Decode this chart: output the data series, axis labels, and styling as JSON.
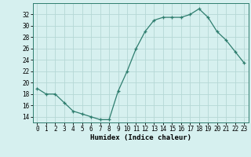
{
  "x": [
    0,
    1,
    2,
    3,
    4,
    5,
    6,
    7,
    8,
    9,
    10,
    11,
    12,
    13,
    14,
    15,
    16,
    17,
    18,
    19,
    20,
    21,
    22,
    23
  ],
  "y": [
    19,
    18,
    18,
    16.5,
    15,
    14.5,
    14,
    13.5,
    13.5,
    18.5,
    22,
    26,
    29,
    31,
    31.5,
    31.5,
    31.5,
    32,
    33,
    31.5,
    29,
    27.5,
    25.5,
    23.5
  ],
  "line_color": "#2e7d6e",
  "marker": "+",
  "bg_color": "#d6f0ef",
  "grid_color": "#b5d8d5",
  "xlabel": "Humidex (Indice chaleur)",
  "ylim": [
    13,
    34
  ],
  "xlim": [
    -0.5,
    23.5
  ],
  "yticks": [
    14,
    16,
    18,
    20,
    22,
    24,
    26,
    28,
    30,
    32
  ],
  "xticks": [
    0,
    1,
    2,
    3,
    4,
    5,
    6,
    7,
    8,
    9,
    10,
    11,
    12,
    13,
    14,
    15,
    16,
    17,
    18,
    19,
    20,
    21,
    22,
    23
  ],
  "tick_fontsize": 5.5,
  "xlabel_fontsize": 6.5
}
